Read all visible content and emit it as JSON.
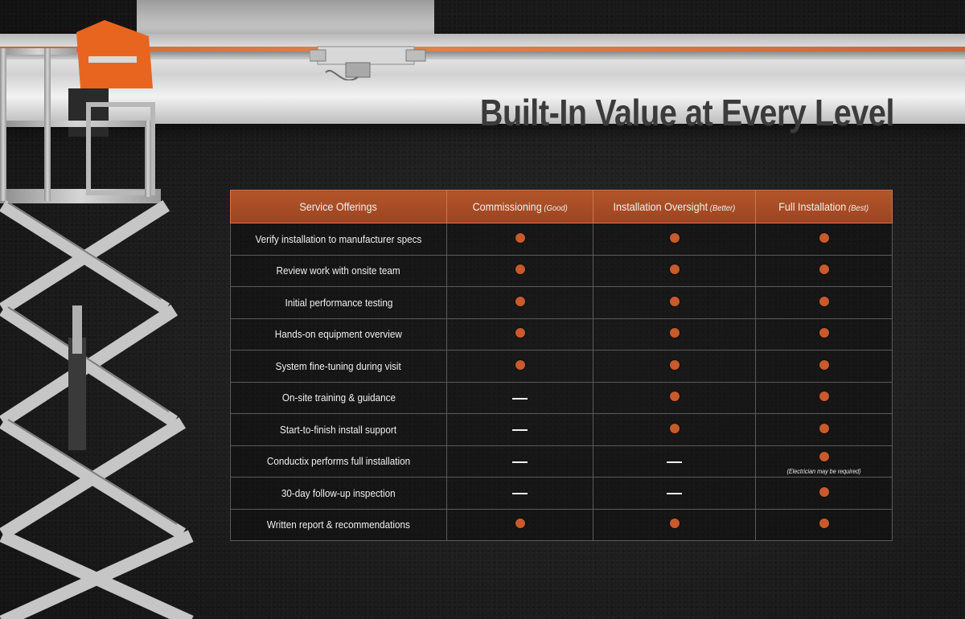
{
  "page": {
    "title": "Built-In Value at Every Level"
  },
  "colors": {
    "accent": "#b2552a",
    "dot": "#c85a2b",
    "background": "#1c1c1c",
    "title": "#3b3b3b"
  },
  "icons": {
    "included": "filled-orange-circle-icon",
    "not_included": "dash-icon"
  },
  "table": {
    "headers": [
      {
        "label": "Service Offerings",
        "tier": ""
      },
      {
        "label": "Commissioning",
        "tier": "(Good)"
      },
      {
        "label": "Installation Oversight",
        "tier": "(Better)"
      },
      {
        "label": "Full Installation",
        "tier": "(Best)"
      }
    ],
    "rows": [
      {
        "service": "Verify installation to manufacturer specs",
        "cells": [
          "dot",
          "dot",
          "dot"
        ]
      },
      {
        "service": "Review work with onsite team",
        "cells": [
          "dot",
          "dot",
          "dot"
        ]
      },
      {
        "service": "Initial performance testing",
        "cells": [
          "dot",
          "dot",
          "dot"
        ]
      },
      {
        "service": "Hands-on equipment overview",
        "cells": [
          "dot",
          "dot",
          "dot"
        ]
      },
      {
        "service": "System fine-tuning during visit",
        "cells": [
          "dot",
          "dot",
          "dot"
        ]
      },
      {
        "service": "On-site training & guidance",
        "cells": [
          "dash",
          "dot",
          "dot"
        ]
      },
      {
        "service": "Start-to-finish install support",
        "cells": [
          "dash",
          "dot",
          "dot"
        ]
      },
      {
        "service": "Conductix performs full installation",
        "cells": [
          "dash",
          "dash",
          "dot"
        ],
        "note": "(Electrician may be required)"
      },
      {
        "service": "30-day follow-up inspection",
        "cells": [
          "dash",
          "dash",
          "dot"
        ]
      },
      {
        "service": "Written report & recommendations",
        "cells": [
          "dot",
          "dot",
          "dot"
        ]
      }
    ]
  }
}
